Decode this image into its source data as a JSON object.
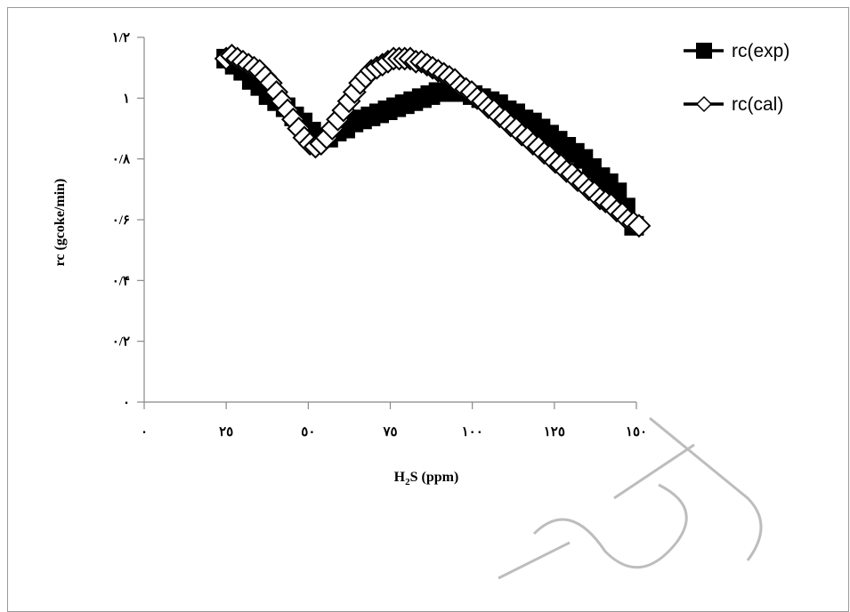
{
  "chart_data": {
    "type": "line",
    "title": "",
    "xlabel": "H",
    "xlabel_sub": "2",
    "xlabel_rest": "S (ppm)",
    "ylabel": "rc (gcoke/min)",
    "xlim": [
      0,
      150
    ],
    "ylim": [
      0,
      1.2
    ],
    "x_ticks": [
      0,
      25,
      50,
      75,
      100,
      125,
      150
    ],
    "x_tick_labels": [
      "٠",
      "٢٥",
      "٥٠",
      "٧٥",
      "١٠٠",
      "١٢٥",
      "١٥٠"
    ],
    "y_ticks": [
      0,
      0.2,
      0.4,
      0.6,
      0.8,
      1.0,
      1.2
    ],
    "y_tick_labels": [
      "٠",
      "٠/٢",
      "٠/۴",
      "٠/۶",
      "٠/٨",
      "١",
      "١/٢"
    ],
    "grid": false,
    "legend_position": "top-right",
    "series": [
      {
        "name": "rc(exp)",
        "marker": "square",
        "color": "#000000",
        "x": [
          25,
          27.6,
          30.2,
          32.8,
          35.4,
          37.9,
          40.5,
          43.1,
          45.7,
          48.3,
          50.9,
          53.5,
          56.1,
          58.7,
          61.3,
          63.8,
          66.4,
          69,
          71.6,
          74.2,
          76.8,
          79.4,
          82,
          84.6,
          87.2,
          89.7,
          92.3,
          94.9,
          97.5,
          100.1,
          102.7,
          105.3,
          107.9,
          110.5,
          113.1,
          115.6,
          118.2,
          120.8,
          123.4,
          126,
          128.6,
          131.2,
          133.8,
          136.4,
          139,
          141.5,
          144.1,
          146.7,
          149.3
        ],
        "y": [
          1.13,
          1.11,
          1.09,
          1.06,
          1.04,
          1.01,
          0.99,
          0.97,
          0.94,
          0.92,
          0.89,
          0.87,
          0.87,
          0.89,
          0.9,
          0.92,
          0.93,
          0.94,
          0.95,
          0.96,
          0.97,
          0.98,
          0.99,
          1.0,
          1.01,
          1.02,
          1.02,
          1.02,
          1.02,
          1.01,
          1.0,
          0.99,
          0.98,
          0.96,
          0.95,
          0.93,
          0.92,
          0.9,
          0.88,
          0.86,
          0.84,
          0.82,
          0.8,
          0.77,
          0.74,
          0.72,
          0.69,
          0.64,
          0.58
        ]
      },
      {
        "name": "rc(cal)",
        "marker": "diamond",
        "color": "#000000",
        "x": [
          25,
          26.7,
          28.4,
          30.1,
          31.8,
          33.5,
          35.2,
          36.9,
          38.6,
          40.3,
          42,
          43.7,
          45.4,
          47.1,
          48.8,
          50.5,
          52.2,
          53.9,
          55.6,
          57.3,
          59,
          60.7,
          62.4,
          64.1,
          65.8,
          67.5,
          69.2,
          70.9,
          72.6,
          74.3,
          76,
          77.7,
          79.4,
          81.1,
          82.8,
          84.5,
          86.2,
          87.9,
          89.6,
          91.3,
          93,
          94.7,
          96.4,
          98.1,
          99.8,
          101.5,
          103.2,
          104.9,
          106.6,
          108.3,
          110,
          111.7,
          113.4,
          115.1,
          116.8,
          118.5,
          120.2,
          121.9,
          123.6,
          125.3,
          127,
          128.7,
          130.4,
          132.1,
          133.8,
          135.5,
          137.2,
          138.9,
          140.6,
          142.3,
          144,
          145.7,
          147.4,
          149.1,
          150.8
        ],
        "y": [
          1.13,
          1.14,
          1.13,
          1.12,
          1.11,
          1.1,
          1.09,
          1.07,
          1.05,
          1.02,
          0.99,
          0.96,
          0.93,
          0.9,
          0.87,
          0.85,
          0.84,
          0.85,
          0.87,
          0.9,
          0.93,
          0.96,
          0.99,
          1.02,
          1.05,
          1.07,
          1.09,
          1.1,
          1.11,
          1.12,
          1.13,
          1.13,
          1.13,
          1.13,
          1.12,
          1.12,
          1.11,
          1.1,
          1.09,
          1.08,
          1.07,
          1.06,
          1.04,
          1.03,
          1.02,
          1.0,
          0.99,
          0.97,
          0.96,
          0.94,
          0.93,
          0.91,
          0.9,
          0.88,
          0.87,
          0.85,
          0.84,
          0.82,
          0.81,
          0.79,
          0.78,
          0.76,
          0.75,
          0.73,
          0.72,
          0.7,
          0.69,
          0.67,
          0.66,
          0.65,
          0.63,
          0.62,
          0.6,
          0.59,
          0.58
        ]
      }
    ]
  }
}
